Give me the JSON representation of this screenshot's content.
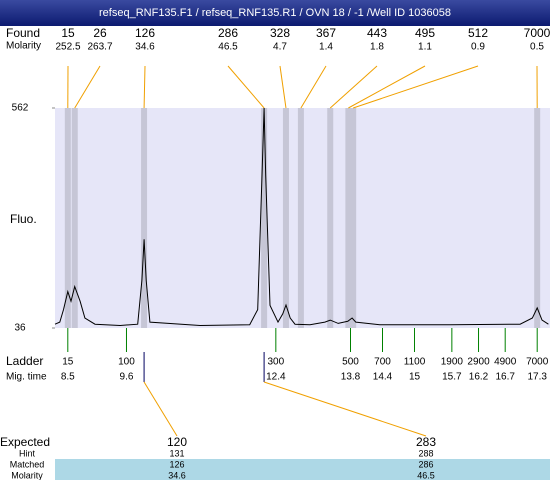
{
  "title_bar": "refseq_RNF135.F1 / refseq_RNF135.R1 / OVN 18 / -1 /Well ID 1036058",
  "chart_data": {
    "type": "electropherogram",
    "ylabel": "Fluo.",
    "ylim": [
      36,
      562
    ],
    "yticks": [
      36,
      562
    ],
    "xlim": [
      8.26,
      17.54
    ],
    "trace": {
      "x": [
        8.26,
        8.35,
        8.42,
        8.5,
        8.56,
        8.63,
        8.73,
        8.82,
        9.01,
        9.48,
        9.81,
        9.89,
        9.93,
        9.97,
        10.04,
        10.98,
        11.91,
        12.06,
        12.14,
        12.18,
        12.21,
        12.29,
        12.44,
        12.53,
        12.59,
        12.67,
        12.76,
        13.04,
        13.32,
        13.42,
        13.57,
        13.75,
        13.83,
        13.9,
        14.35,
        15.67,
        16.98,
        17.21,
        17.3,
        17.39,
        17.51
      ],
      "y": [
        45,
        50,
        80,
        123,
        100,
        135,
        100,
        60,
        45,
        42,
        45,
        150,
        248,
        150,
        50,
        42,
        44,
        80,
        400,
        562,
        400,
        90,
        50,
        70,
        91,
        60,
        45,
        44,
        50,
        55,
        47,
        52,
        60,
        50,
        44,
        44,
        45,
        60,
        84,
        55,
        45
      ]
    },
    "found": {
      "label": "Found",
      "molarity_label": "Molarity",
      "sizes": [
        15,
        26,
        126,
        286,
        328,
        367,
        443,
        495,
        512,
        7000
      ],
      "molarity": [
        252.5,
        263.7,
        34.6,
        46.5,
        4.7,
        1.4,
        1.8,
        1.1,
        0.9,
        0.5
      ],
      "times": [
        8.5,
        8.63,
        9.93,
        12.18,
        12.59,
        12.87,
        13.42,
        13.76,
        13.85,
        17.3
      ]
    },
    "ladder": {
      "label": "Ladder",
      "time_label": "Mig. time",
      "sizes": [
        15,
        100,
        300,
        500,
        700,
        1100,
        1900,
        2900,
        4900,
        7000
      ],
      "times": [
        8.5,
        9.6,
        12.4,
        13.8,
        14.4,
        15,
        15.7,
        16.2,
        16.7,
        17.3
      ]
    },
    "expected": {
      "label": "Expected",
      "hint_label": "Hint",
      "matched_label": "Matched",
      "molarity_label": "Molarity",
      "sizes": [
        120,
        283
      ],
      "hint": [
        131,
        288
      ],
      "matched": [
        126,
        286
      ],
      "molarity": [
        34.6,
        46.5
      ]
    }
  }
}
